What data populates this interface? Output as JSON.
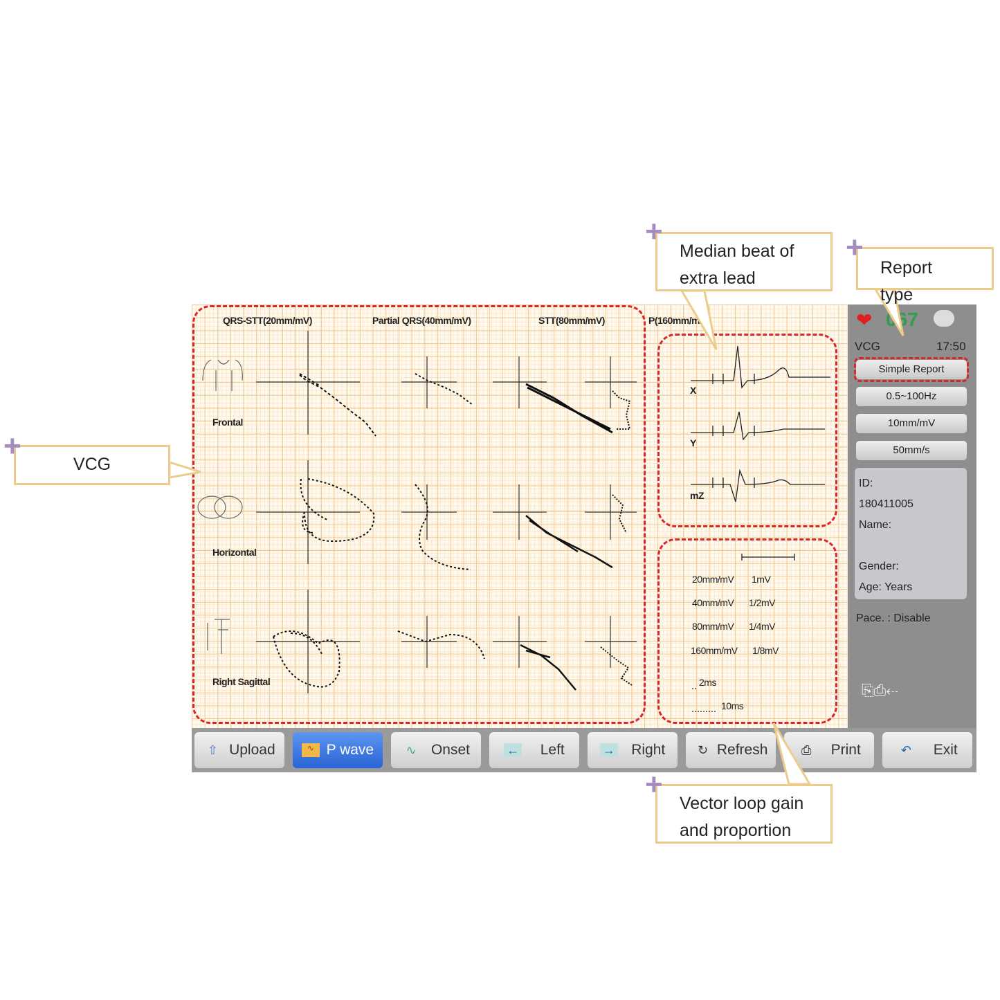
{
  "vcg": {
    "column_headers": [
      "QRS-STT(20mm/mV)",
      "Partial QRS(40mm/mV)",
      "STT(80mm/mV)",
      "P(160mm/mV)"
    ],
    "planes": [
      "Frontal",
      "Horizontal",
      "Right Sagittal"
    ]
  },
  "median_beat": {
    "leads": [
      "X",
      "Y",
      "mZ"
    ]
  },
  "gain": {
    "rows": [
      [
        "20mm/mV",
        "1mV"
      ],
      [
        "40mm/mV",
        "1/2mV"
      ],
      [
        "80mm/mV",
        "1/4mV"
      ],
      [
        "160mm/mV",
        "1/8mV"
      ]
    ],
    "time_marks": [
      "2ms",
      "10ms"
    ]
  },
  "panel": {
    "heart_rate": "067",
    "mode": "VCG",
    "time": "17:50",
    "buttons": [
      "Simple Report",
      "0.5~100Hz",
      "10mm/mV",
      "50mm/s"
    ],
    "patient": {
      "id_label": "ID:",
      "id": "180411005",
      "name_label": "Name:",
      "gender_label": "Gender:",
      "age_label": "Age:",
      "age_unit": "Years"
    },
    "pace": "Pace. : Disable"
  },
  "toolbar": [
    {
      "label": "Upload",
      "icon": "upload-icon"
    },
    {
      "label": "P wave",
      "icon": "p-wave-icon",
      "active": true
    },
    {
      "label": "Onset",
      "icon": "onset-icon"
    },
    {
      "label": "Left",
      "icon": "arrow-left-icon"
    },
    {
      "label": "Right",
      "icon": "arrow-right-icon"
    },
    {
      "label": "Refresh",
      "icon": "refresh-icon"
    },
    {
      "label": "Print",
      "icon": "printer-icon"
    },
    {
      "label": "Exit",
      "icon": "exit-icon"
    }
  ],
  "callouts": {
    "vcg": "VCG",
    "median": "Median beat of extra lead",
    "report": "Report type",
    "gain": "Vector loop gain and proportion"
  },
  "colors": {
    "dash": "#d8262c",
    "callout_border": "#eccb8b",
    "plus": "#a48cc0",
    "active_button": "#2a63d4",
    "heart_rate": "#2e9e4a"
  }
}
